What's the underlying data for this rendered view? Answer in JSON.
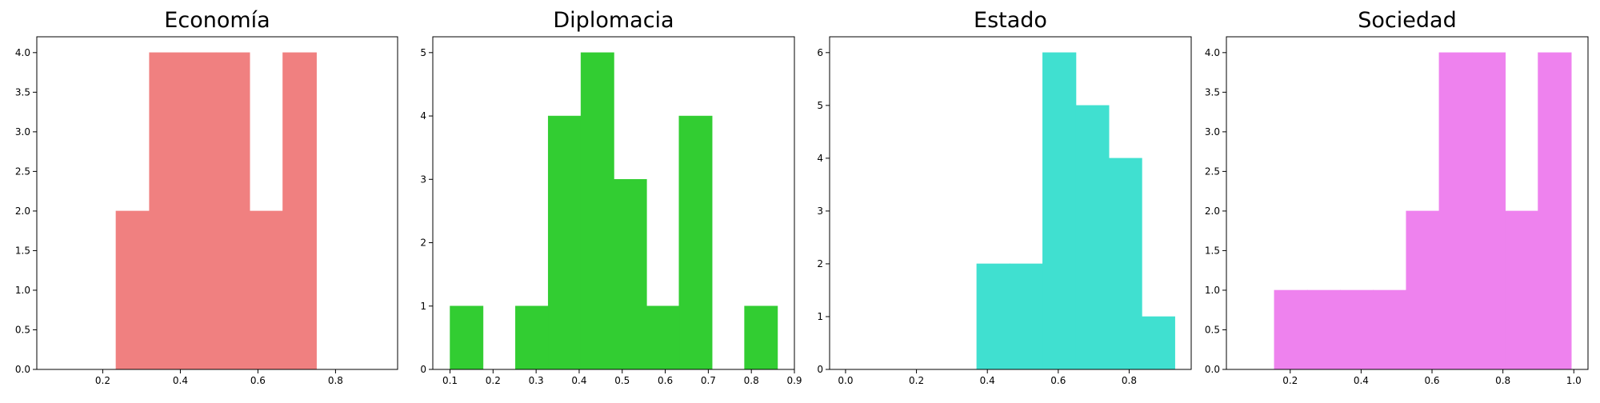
{
  "chart_data": [
    {
      "type": "bar",
      "title": "Economía",
      "color": "#f08080",
      "xlim": [
        0.03,
        0.96
      ],
      "ylim": [
        0,
        4.2
      ],
      "xticks": [
        "0.2",
        "0.4",
        "0.6",
        "0.8"
      ],
      "yticks": [
        "0.0",
        "0.5",
        "1.0",
        "1.5",
        "2.0",
        "2.5",
        "3.0",
        "3.5",
        "4.0"
      ],
      "bins": [
        {
          "x0": 0.234,
          "x1": 0.32,
          "value": 2
        },
        {
          "x0": 0.32,
          "x1": 0.406,
          "value": 4
        },
        {
          "x0": 0.406,
          "x1": 0.492,
          "value": 4
        },
        {
          "x0": 0.492,
          "x1": 0.578,
          "value": 4
        },
        {
          "x0": 0.578,
          "x1": 0.664,
          "value": 2
        },
        {
          "x0": 0.664,
          "x1": 0.75,
          "value": 4
        }
      ]
    },
    {
      "type": "bar",
      "title": "Diplomacia",
      "color": "#32cd32",
      "xlim": [
        0.06,
        0.9
      ],
      "ylim": [
        0,
        5.25
      ],
      "xticks": [
        "0.1",
        "0.2",
        "0.3",
        "0.4",
        "0.5",
        "0.6",
        "0.7",
        "0.8",
        "0.9"
      ],
      "yticks": [
        "0",
        "1",
        "2",
        "3",
        "4",
        "5"
      ],
      "bins": [
        {
          "x0": 0.1,
          "x1": 0.176,
          "value": 1
        },
        {
          "x0": 0.176,
          "x1": 0.252,
          "value": 0
        },
        {
          "x0": 0.252,
          "x1": 0.328,
          "value": 1
        },
        {
          "x0": 0.328,
          "x1": 0.404,
          "value": 4
        },
        {
          "x0": 0.404,
          "x1": 0.48,
          "value": 5
        },
        {
          "x0": 0.48,
          "x1": 0.556,
          "value": 3
        },
        {
          "x0": 0.556,
          "x1": 0.632,
          "value": 1
        },
        {
          "x0": 0.632,
          "x1": 0.708,
          "value": 4
        },
        {
          "x0": 0.708,
          "x1": 0.784,
          "value": 0
        },
        {
          "x0": 0.784,
          "x1": 0.86,
          "value": 1
        }
      ]
    },
    {
      "type": "bar",
      "title": "Estado",
      "color": "#40e0d0",
      "xlim": [
        -0.045,
        0.975
      ],
      "ylim": [
        0,
        6.3
      ],
      "xticks": [
        "0.0",
        "0.2",
        "0.4",
        "0.6",
        "0.8"
      ],
      "yticks": [
        "0",
        "1",
        "2",
        "3",
        "4",
        "5",
        "6"
      ],
      "bins": [
        {
          "x0": 0.37,
          "x1": 0.463,
          "value": 2
        },
        {
          "x0": 0.463,
          "x1": 0.556,
          "value": 2
        },
        {
          "x0": 0.556,
          "x1": 0.649,
          "value": 6
        },
        {
          "x0": 0.649,
          "x1": 0.742,
          "value": 5
        },
        {
          "x0": 0.742,
          "x1": 0.835,
          "value": 4
        },
        {
          "x0": 0.835,
          "x1": 0.928,
          "value": 1
        }
      ]
    },
    {
      "type": "bar",
      "title": "Sociedad",
      "color": "#ee82ee",
      "xlim": [
        0.02,
        1.04
      ],
      "ylim": [
        0,
        4.2
      ],
      "xticks": [
        "0.2",
        "0.4",
        "0.6",
        "0.8",
        "1.0"
      ],
      "yticks": [
        "0.0",
        "0.5",
        "1.0",
        "1.5",
        "2.0",
        "2.5",
        "3.0",
        "3.5",
        "4.0"
      ],
      "bins": [
        {
          "x0": 0.155,
          "x1": 0.248,
          "value": 1
        },
        {
          "x0": 0.248,
          "x1": 0.341,
          "value": 1
        },
        {
          "x0": 0.341,
          "x1": 0.434,
          "value": 1
        },
        {
          "x0": 0.434,
          "x1": 0.527,
          "value": 1
        },
        {
          "x0": 0.527,
          "x1": 0.62,
          "value": 2
        },
        {
          "x0": 0.62,
          "x1": 0.713,
          "value": 4
        },
        {
          "x0": 0.713,
          "x1": 0.806,
          "value": 4
        },
        {
          "x0": 0.806,
          "x1": 0.899,
          "value": 2
        },
        {
          "x0": 0.899,
          "x1": 0.992,
          "value": 4
        }
      ]
    }
  ]
}
